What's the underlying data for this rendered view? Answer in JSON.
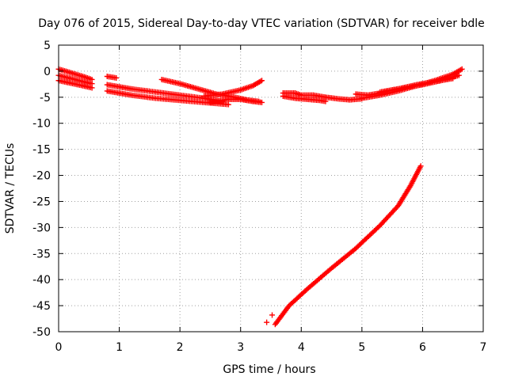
{
  "chart_data": {
    "type": "scatter",
    "title": "Day 076 of 2015, Sidereal Day-to-day VTEC variation (SDTVAR) for receiver bdle",
    "xlabel": "GPS time / hours",
    "ylabel": "SDTVAR / TECUs",
    "xlim": [
      0,
      7
    ],
    "ylim": [
      -50,
      5
    ],
    "xticks": [
      0,
      1,
      2,
      3,
      4,
      5,
      6,
      7
    ],
    "yticks": [
      5,
      0,
      -5,
      -10,
      -15,
      -20,
      -25,
      -30,
      -35,
      -40,
      -45,
      -50
    ],
    "grid": true,
    "marker": "plus",
    "color": "#ff0000",
    "series": [
      {
        "segments": [
          {
            "x": [
              0.0,
              0.2,
              0.4,
              0.55
            ],
            "y": [
              0.4,
              -0.3,
              -1.0,
              -1.6
            ]
          },
          {
            "x": [
              0.0,
              0.2,
              0.4,
              0.55
            ],
            "y": [
              -0.8,
              -1.4,
              -2.0,
              -2.4
            ]
          },
          {
            "x": [
              0.0,
              0.2,
              0.4,
              0.55
            ],
            "y": [
              -1.8,
              -2.3,
              -2.8,
              -3.2
            ]
          },
          {
            "x": [
              0.8,
              0.95
            ],
            "y": [
              -1.0,
              -1.3
            ]
          },
          {
            "x": [
              0.8,
              1.2,
              1.6,
              2.0,
              2.4,
              2.7
            ],
            "y": [
              -2.6,
              -3.4,
              -4.0,
              -4.6,
              -5.2,
              -5.8
            ]
          },
          {
            "x": [
              0.8,
              1.2,
              1.6,
              2.0,
              2.4,
              2.8
            ],
            "y": [
              -3.8,
              -4.6,
              -5.2,
              -5.6,
              -6.0,
              -6.4
            ]
          },
          {
            "x": [
              1.7,
              2.0,
              2.3,
              2.6,
              2.9,
              3.1,
              3.3
            ],
            "y": [
              -1.6,
              -2.4,
              -3.4,
              -4.4,
              -5.0,
              -5.5,
              -5.8
            ]
          },
          {
            "x": [
              2.4,
              2.7,
              3.0,
              3.2,
              3.35
            ],
            "y": [
              -4.8,
              -4.4,
              -3.6,
              -2.8,
              -1.8
            ]
          },
          {
            "x": [
              2.5,
              2.8,
              3.0,
              3.2,
              3.35
            ],
            "y": [
              -6.0,
              -5.4,
              -5.4,
              -5.8,
              -6.0
            ]
          },
          {
            "x": [
              3.7,
              3.9,
              4.0,
              4.2,
              4.4
            ],
            "y": [
              -4.2,
              -4.2,
              -4.6,
              -4.6,
              -5.0
            ]
          },
          {
            "x": [
              3.7,
              3.9,
              4.1,
              4.3,
              4.4
            ],
            "y": [
              -4.8,
              -5.2,
              -5.4,
              -5.6,
              -5.8
            ]
          },
          {
            "x": [
              4.4,
              4.6,
              4.8,
              5.0
            ],
            "y": [
              -5.0,
              -5.3,
              -5.5,
              -5.3
            ]
          },
          {
            "x": [
              4.9,
              5.1,
              5.3,
              5.5,
              5.7,
              6.0,
              6.3,
              6.6
            ],
            "y": [
              -4.4,
              -4.6,
              -4.2,
              -3.6,
              -3.2,
              -2.6,
              -1.8,
              -0.8
            ]
          },
          {
            "x": [
              5.0,
              5.3,
              5.6,
              5.9,
              6.2,
              6.5,
              6.65
            ],
            "y": [
              -5.2,
              -4.6,
              -3.8,
              -2.8,
              -1.8,
              -0.6,
              0.4
            ]
          },
          {
            "x": [
              5.3,
              5.6,
              5.9,
              6.2,
              6.5
            ],
            "y": [
              -4.0,
              -3.4,
              -2.6,
              -2.0,
              -1.4
            ]
          },
          {
            "x": [
              3.57,
              3.8,
              4.1,
              4.5,
              4.9,
              5.3,
              5.6,
              5.8,
              5.97
            ],
            "y": [
              -48.6,
              -45.0,
              -41.8,
              -37.8,
              -34.0,
              -29.6,
              -25.8,
              -22.0,
              -18.2
            ]
          }
        ],
        "points": {
          "x": [
            3.43,
            3.52
          ],
          "y": [
            -48.2,
            -46.8
          ]
        }
      }
    ]
  }
}
